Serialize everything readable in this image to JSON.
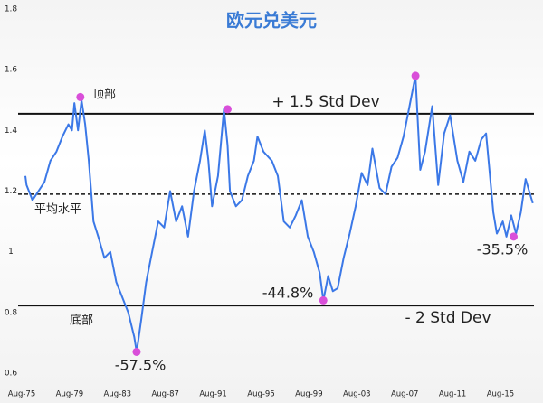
{
  "chart_data": {
    "type": "line",
    "title": "欧元兑美元",
    "x": [
      1975.9,
      1976.0,
      1976.5,
      1977.0,
      1977.5,
      1978.0,
      1978.5,
      1979.0,
      1979.5,
      1979.8,
      1980.0,
      1980.3,
      1980.6,
      1980.9,
      1981.2,
      1981.6,
      1982.0,
      1982.5,
      1983.0,
      1983.5,
      1984.0,
      1984.5,
      1985.0,
      1985.2,
      1985.6,
      1986.0,
      1986.5,
      1987.0,
      1987.5,
      1988.0,
      1988.5,
      1989.0,
      1989.5,
      1990.0,
      1990.5,
      1990.9,
      1991.2,
      1991.5,
      1992.0,
      1992.5,
      1992.8,
      1993.0,
      1993.5,
      1994.0,
      1994.5,
      1995.0,
      1995.3,
      1995.8,
      1996.5,
      1997.0,
      1997.5,
      1998.0,
      1998.5,
      1999.0,
      1999.5,
      2000.0,
      2000.5,
      2000.8,
      2001.2,
      2001.6,
      2002.0,
      2002.5,
      2003.0,
      2003.5,
      2004.0,
      2004.5,
      2004.9,
      2005.5,
      2006.0,
      2006.5,
      2007.0,
      2007.5,
      2008.0,
      2008.5,
      2008.9,
      2009.3,
      2009.9,
      2010.4,
      2010.9,
      2011.4,
      2012.0,
      2012.5,
      2013.0,
      2013.5,
      2014.0,
      2014.4,
      2015.0,
      2015.3,
      2015.8,
      2016.1,
      2016.5,
      2016.9,
      2017.3,
      2017.7,
      2018.0,
      2018.3
    ],
    "values": [
      1.25,
      1.22,
      1.17,
      1.2,
      1.23,
      1.3,
      1.33,
      1.38,
      1.42,
      1.4,
      1.49,
      1.4,
      1.5,
      1.42,
      1.3,
      1.1,
      1.05,
      0.98,
      1.0,
      0.9,
      0.85,
      0.8,
      0.72,
      0.67,
      0.78,
      0.9,
      1.0,
      1.1,
      1.08,
      1.2,
      1.1,
      1.15,
      1.05,
      1.2,
      1.3,
      1.4,
      1.3,
      1.15,
      1.25,
      1.47,
      1.35,
      1.2,
      1.15,
      1.17,
      1.25,
      1.3,
      1.38,
      1.33,
      1.3,
      1.25,
      1.1,
      1.08,
      1.12,
      1.17,
      1.05,
      1.0,
      0.93,
      0.84,
      0.92,
      0.87,
      0.88,
      0.98,
      1.06,
      1.15,
      1.26,
      1.22,
      1.34,
      1.21,
      1.19,
      1.28,
      1.31,
      1.38,
      1.48,
      1.58,
      1.27,
      1.33,
      1.48,
      1.22,
      1.39,
      1.45,
      1.3,
      1.23,
      1.33,
      1.3,
      1.37,
      1.39,
      1.13,
      1.06,
      1.1,
      1.05,
      1.12,
      1.06,
      1.13,
      1.24,
      1.2,
      1.16
    ],
    "color": "#3b78e7",
    "markers": {
      "x": [
        1980.5,
        1985.2,
        1992.8,
        2000.8,
        2008.5,
        2016.7
      ],
      "values": [
        1.51,
        0.67,
        1.47,
        0.84,
        1.58,
        1.05
      ],
      "color": "#d94fd9"
    },
    "reference_lines": [
      {
        "value": 1.455,
        "label": "+ 1.5 Std Dev",
        "style": "solid"
      },
      {
        "value": 1.19,
        "label": "平均水平",
        "style": "dashed"
      },
      {
        "value": 0.823,
        "label": "- 2 Std Dev",
        "style": "solid"
      }
    ],
    "annotations": [
      "顶部",
      "底部",
      "-57.5%",
      "-44.8%",
      "-35.5%"
    ],
    "xlim": [
      1975.6,
      2018.55
    ],
    "ylim": [
      0.6,
      1.8
    ],
    "xticks": [
      {
        "value": 1975.6,
        "label": "Aug-75"
      },
      {
        "value": 1979.6,
        "label": "Aug-79"
      },
      {
        "value": 1983.6,
        "label": "Aug-83"
      },
      {
        "value": 1987.6,
        "label": "Aug-87"
      },
      {
        "value": 1991.6,
        "label": "Aug-91"
      },
      {
        "value": 1995.6,
        "label": "Aug-95"
      },
      {
        "value": 1999.6,
        "label": "Aug-99"
      },
      {
        "value": 2003.6,
        "label": "Aug-03"
      },
      {
        "value": 2007.6,
        "label": "Aug-07"
      },
      {
        "value": 2011.6,
        "label": "Aug-11"
      },
      {
        "value": 2015.6,
        "label": "Aug-15"
      }
    ],
    "yticks": [
      0.6,
      0.8,
      1,
      1.2,
      1.4,
      1.6,
      1.8
    ]
  }
}
